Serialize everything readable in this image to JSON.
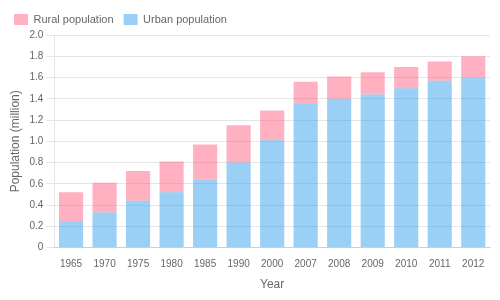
{
  "chart_data": {
    "type": "bar",
    "stacked": true,
    "categories": [
      "1965",
      "1970",
      "1975",
      "1980",
      "1985",
      "1990",
      "2000",
      "2007",
      "2008",
      "2009",
      "2010",
      "2011",
      "2012"
    ],
    "series": [
      {
        "name": "Urban population",
        "values": [
          0.25,
          0.33,
          0.44,
          0.52,
          0.64,
          0.8,
          1.01,
          1.35,
          1.4,
          1.44,
          1.5,
          1.57,
          1.6
        ]
      },
      {
        "name": "Rural population",
        "values": [
          0.27,
          0.28,
          0.28,
          0.29,
          0.33,
          0.35,
          0.28,
          0.21,
          0.21,
          0.21,
          0.2,
          0.18,
          0.2
        ]
      }
    ],
    "x_label": "Year",
    "y_label": "Population (million)",
    "ylim": [
      0,
      2.0
    ],
    "yticks": [
      0,
      0.2,
      0.4,
      0.6,
      0.8,
      {
        "value": 1.0,
        "label": "1.0"
      },
      1.2,
      1.4,
      1.6,
      1.8,
      {
        "value": 2.0,
        "label": "2.0"
      }
    ],
    "grid": true,
    "legend": "upper left"
  }
}
